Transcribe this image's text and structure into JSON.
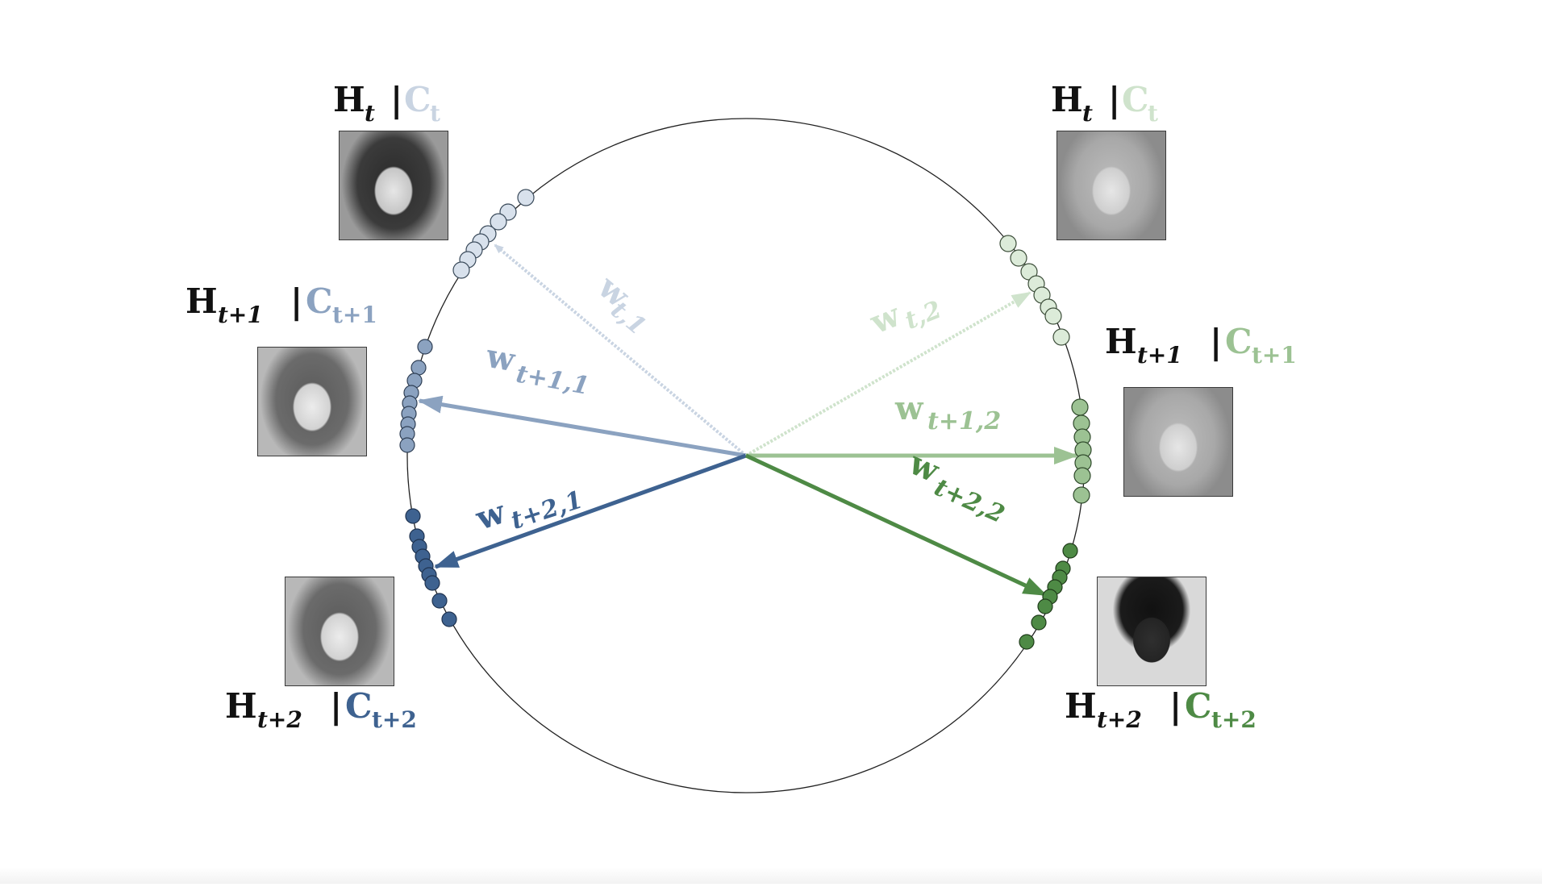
{
  "labels": {
    "h_t": "H",
    "sub_t": "t",
    "sub_t1": "t+1",
    "sub_t2": "t+2",
    "bar": "|",
    "c": "C",
    "csub_t": "t",
    "csub_t1": "t+1",
    "csub_t2": "t+2"
  },
  "weights": {
    "w": "w",
    "w_t1": "t,1",
    "w_t2": "t,2",
    "w_t11": "t+1,1",
    "w_t12": "t+1,2",
    "w_t21": "t+2,1",
    "w_t22": "t+2,2"
  },
  "colors": {
    "blue_light": "#c9d4e2",
    "blue_mid": "#8ba2c0",
    "blue_dark": "#3e6290",
    "green_light": "#cfe3cc",
    "green_mid": "#9cc293",
    "green_dark": "#4e8a45",
    "black": "#111111"
  }
}
